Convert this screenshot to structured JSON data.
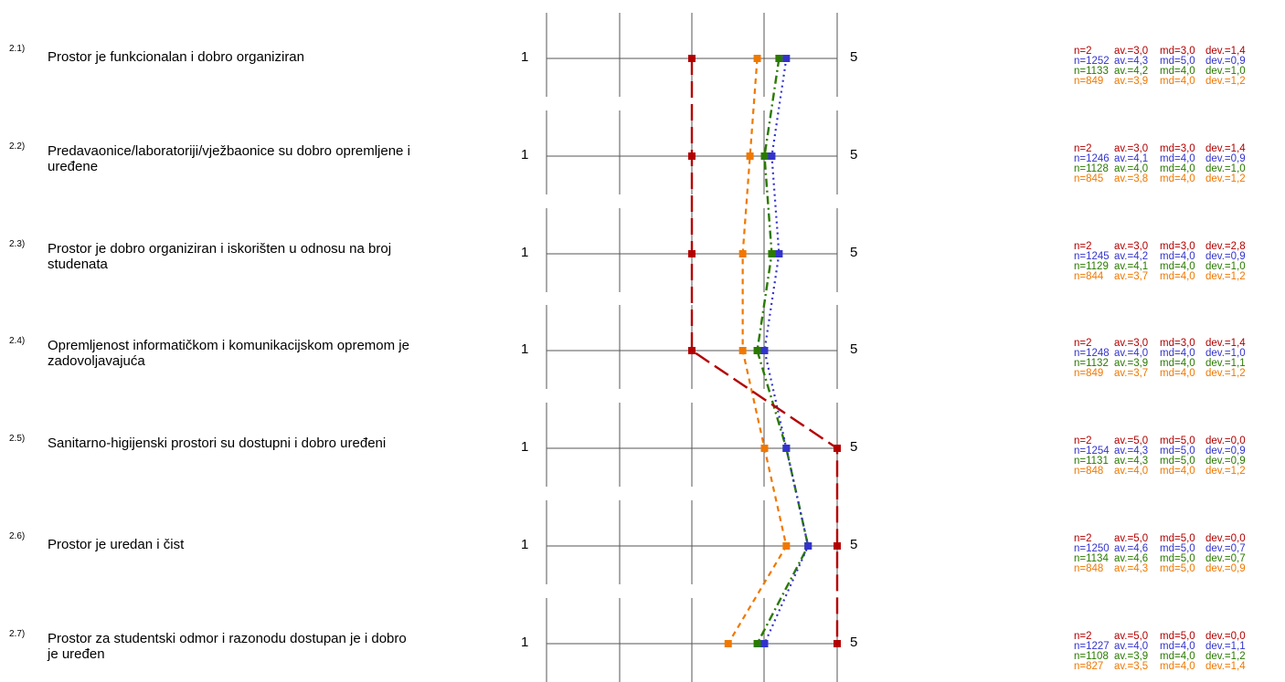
{
  "chart_data": {
    "type": "line",
    "scale": {
      "min_label": "1",
      "max_label": "5",
      "min": 1,
      "max": 5
    },
    "grid": true,
    "series": [
      {
        "color": "#b30000",
        "dash": "long"
      },
      {
        "color": "#3333cc",
        "dash": "dotted"
      },
      {
        "color": "#2a7a00",
        "dash": "dashdot"
      },
      {
        "color": "#f07800",
        "dash": "short"
      }
    ],
    "items": [
      {
        "num": "2.1)",
        "text": "Prostor je funkcionalan i dobro organiziran",
        "values": [
          3.0,
          4.3,
          4.2,
          3.9
        ],
        "stats": [
          {
            "n": "n=2",
            "av": "av.=3,0",
            "md": "md=3,0",
            "dev": "dev.=1,4"
          },
          {
            "n": "n=1252",
            "av": "av.=4,3",
            "md": "md=5,0",
            "dev": "dev.=0,9"
          },
          {
            "n": "n=1133",
            "av": "av.=4,2",
            "md": "md=4,0",
            "dev": "dev.=1,0"
          },
          {
            "n": "n=849",
            "av": "av.=3,9",
            "md": "md=4,0",
            "dev": "dev.=1,2"
          }
        ]
      },
      {
        "num": "2.2)",
        "text": "Predavaonice/laboratoriji/vježbaonice su dobro opremljene i uređene",
        "values": [
          3.0,
          4.1,
          4.0,
          3.8
        ],
        "stats": [
          {
            "n": "n=2",
            "av": "av.=3,0",
            "md": "md=3,0",
            "dev": "dev.=1,4"
          },
          {
            "n": "n=1246",
            "av": "av.=4,1",
            "md": "md=4,0",
            "dev": "dev.=0,9"
          },
          {
            "n": "n=1128",
            "av": "av.=4,0",
            "md": "md=4,0",
            "dev": "dev.=1,0"
          },
          {
            "n": "n=845",
            "av": "av.=3,8",
            "md": "md=4,0",
            "dev": "dev.=1,2"
          }
        ]
      },
      {
        "num": "2.3)",
        "text": "Prostor je dobro organiziran i iskorišten u odnosu na broj studenata",
        "values": [
          3.0,
          4.2,
          4.1,
          3.7
        ],
        "stats": [
          {
            "n": "n=2",
            "av": "av.=3,0",
            "md": "md=3,0",
            "dev": "dev.=2,8"
          },
          {
            "n": "n=1245",
            "av": "av.=4,2",
            "md": "md=4,0",
            "dev": "dev.=0,9"
          },
          {
            "n": "n=1129",
            "av": "av.=4,1",
            "md": "md=4,0",
            "dev": "dev.=1,0"
          },
          {
            "n": "n=844",
            "av": "av.=3,7",
            "md": "md=4,0",
            "dev": "dev.=1,2"
          }
        ]
      },
      {
        "num": "2.4)",
        "text": "Opremljenost informatičkom i komunikacijskom opremom je zadovoljavajuća",
        "values": [
          3.0,
          4.0,
          3.9,
          3.7
        ],
        "stats": [
          {
            "n": "n=2",
            "av": "av.=3,0",
            "md": "md=3,0",
            "dev": "dev.=1,4"
          },
          {
            "n": "n=1248",
            "av": "av.=4,0",
            "md": "md=4,0",
            "dev": "dev.=1,0"
          },
          {
            "n": "n=1132",
            "av": "av.=3,9",
            "md": "md=4,0",
            "dev": "dev.=1,1"
          },
          {
            "n": "n=849",
            "av": "av.=3,7",
            "md": "md=4,0",
            "dev": "dev.=1,2"
          }
        ]
      },
      {
        "num": "2.5)",
        "text": "Sanitarno-higijenski prostori su  dostupni i dobro uređeni",
        "values": [
          5.0,
          4.3,
          4.3,
          4.0
        ],
        "stats": [
          {
            "n": "n=2",
            "av": "av.=5,0",
            "md": "md=5,0",
            "dev": "dev.=0,0"
          },
          {
            "n": "n=1254",
            "av": "av.=4,3",
            "md": "md=5,0",
            "dev": "dev.=0,9"
          },
          {
            "n": "n=1131",
            "av": "av.=4,3",
            "md": "md=5,0",
            "dev": "dev.=0,9"
          },
          {
            "n": "n=848",
            "av": "av.=4,0",
            "md": "md=4,0",
            "dev": "dev.=1,2"
          }
        ]
      },
      {
        "num": "2.6)",
        "text": "Prostor je uredan i čist",
        "values": [
          5.0,
          4.6,
          4.6,
          4.3
        ],
        "stats": [
          {
            "n": "n=2",
            "av": "av.=5,0",
            "md": "md=5,0",
            "dev": "dev.=0,0"
          },
          {
            "n": "n=1250",
            "av": "av.=4,6",
            "md": "md=5,0",
            "dev": "dev.=0,7"
          },
          {
            "n": "n=1134",
            "av": "av.=4,6",
            "md": "md=5,0",
            "dev": "dev.=0,7"
          },
          {
            "n": "n=848",
            "av": "av.=4,3",
            "md": "md=5,0",
            "dev": "dev.=0,9"
          }
        ]
      },
      {
        "num": "2.7)",
        "text": "Prostor za studentski odmor i razonodu dostupan je i dobro je uređen",
        "values": [
          5.0,
          4.0,
          3.9,
          3.5
        ],
        "stats": [
          {
            "n": "n=2",
            "av": "av.=5,0",
            "md": "md=5,0",
            "dev": "dev.=0,0"
          },
          {
            "n": "n=1227",
            "av": "av.=4,0",
            "md": "md=4,0",
            "dev": "dev.=1,1"
          },
          {
            "n": "n=1108",
            "av": "av.=3,9",
            "md": "md=4,0",
            "dev": "dev.=1,2"
          },
          {
            "n": "n=827",
            "av": "av.=3,5",
            "md": "md=4,0",
            "dev": "dev.=1,4"
          }
        ]
      }
    ]
  }
}
